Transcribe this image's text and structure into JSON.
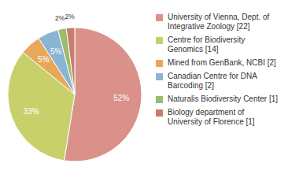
{
  "chart_data": {
    "type": "pie",
    "categories": [
      "University of Vienna, Dept. of\nIntegrative Zoology [22]",
      "Centre for Biodiversity\nGenomics [14]",
      "Mined from GenBank, NCBI [2]",
      "Canadian Centre for DNA\nBarcoding [2]",
      "Naturalis Biodiversity Center [1]",
      "Biology department of\nUniversity of Florence [1]"
    ],
    "values": [
      52,
      33,
      5,
      5,
      2,
      2
    ],
    "value_labels": [
      "52%",
      "33%",
      "5%",
      "5%",
      "2%",
      "2%"
    ],
    "colors": [
      "#d9918a",
      "#c8d06b",
      "#e8a85a",
      "#8ab4d4",
      "#9cbb6e",
      "#c97b6e"
    ],
    "data_labels": true,
    "legend": "right"
  }
}
